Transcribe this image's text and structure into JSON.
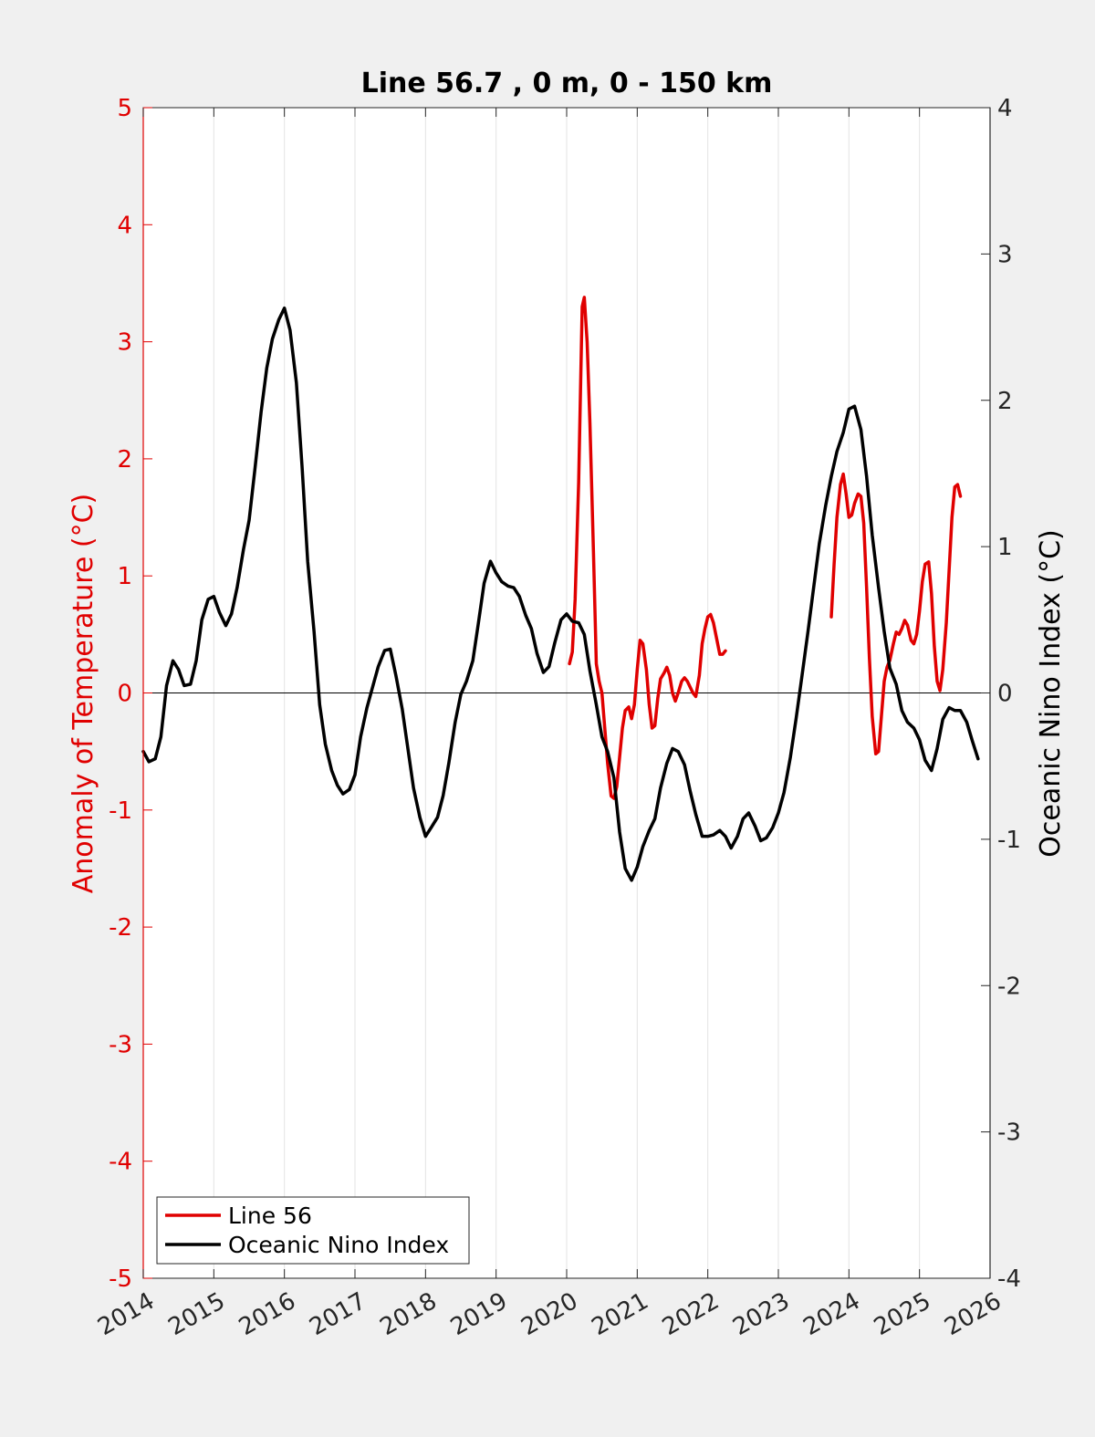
{
  "chart_data": {
    "type": "line",
    "title": "Line 56.7 , 0 m, 0 - 150 km",
    "xlabel": "",
    "ylabel_left": "Anomaly of Temperature (°C)",
    "ylabel_right": "Oceanic Nino Index (°C)",
    "xlim": [
      2014,
      2026
    ],
    "ylim_left": [
      -5,
      5
    ],
    "ylim_right": [
      -4,
      4
    ],
    "x_ticks": [
      "2014",
      "2015",
      "2016",
      "2017",
      "2018",
      "2019",
      "2020",
      "2021",
      "2022",
      "2023",
      "2024",
      "2025",
      "2026"
    ],
    "y_ticks_left": [
      "5",
      "4",
      "3",
      "2",
      "1",
      "0",
      "-1",
      "-2",
      "-3",
      "-4",
      "-5"
    ],
    "y_ticks_right": [
      "4",
      "3",
      "2",
      "1",
      "0",
      "-1",
      "-2",
      "-3",
      "-4"
    ],
    "grid": "vertical",
    "legend_position": "bottom-left",
    "colors": {
      "line56": "#e00000",
      "oni": "#000000",
      "left_axis": "#e00000",
      "right_axis": "#000000",
      "plot_bg": "#ffffff",
      "figure_bg": "#f0f0f0"
    },
    "series": [
      {
        "name": "Line 56",
        "axis": "left",
        "color": "#e00000",
        "segments": [
          [
            [
              2020.04,
              0.25
            ],
            [
              2020.08,
              0.35
            ],
            [
              2020.12,
              0.8
            ],
            [
              2020.17,
              1.8
            ],
            [
              2020.22,
              3.3
            ],
            [
              2020.25,
              3.38
            ],
            [
              2020.29,
              3.0
            ],
            [
              2020.33,
              2.3
            ],
            [
              2020.38,
              1.2
            ],
            [
              2020.42,
              0.25
            ],
            [
              2020.46,
              0.1
            ],
            [
              2020.5,
              0.0
            ],
            [
              2020.54,
              -0.3
            ],
            [
              2020.58,
              -0.6
            ],
            [
              2020.63,
              -0.88
            ],
            [
              2020.67,
              -0.9
            ],
            [
              2020.71,
              -0.8
            ],
            [
              2020.75,
              -0.55
            ],
            [
              2020.79,
              -0.3
            ],
            [
              2020.83,
              -0.15
            ],
            [
              2020.88,
              -0.12
            ],
            [
              2020.92,
              -0.22
            ],
            [
              2020.96,
              -0.1
            ],
            [
              2021.0,
              0.2
            ],
            [
              2021.04,
              0.45
            ],
            [
              2021.08,
              0.42
            ],
            [
              2021.13,
              0.2
            ],
            [
              2021.17,
              -0.1
            ],
            [
              2021.21,
              -0.3
            ],
            [
              2021.25,
              -0.28
            ],
            [
              2021.29,
              -0.05
            ],
            [
              2021.33,
              0.12
            ],
            [
              2021.38,
              0.17
            ],
            [
              2021.42,
              0.22
            ],
            [
              2021.46,
              0.15
            ],
            [
              2021.5,
              0.0
            ],
            [
              2021.54,
              -0.07
            ],
            [
              2021.58,
              0.0
            ],
            [
              2021.63,
              0.1
            ],
            [
              2021.67,
              0.13
            ],
            [
              2021.71,
              0.1
            ],
            [
              2021.75,
              0.05
            ],
            [
              2021.79,
              0.0
            ],
            [
              2021.83,
              -0.03
            ],
            [
              2021.88,
              0.15
            ],
            [
              2021.92,
              0.42
            ],
            [
              2021.96,
              0.55
            ],
            [
              2022.0,
              0.65
            ],
            [
              2022.04,
              0.67
            ],
            [
              2022.08,
              0.6
            ],
            [
              2022.13,
              0.45
            ],
            [
              2022.17,
              0.33
            ],
            [
              2022.21,
              0.33
            ],
            [
              2022.25,
              0.36
            ]
          ],
          [
            [
              2023.75,
              0.65
            ],
            [
              2023.79,
              1.1
            ],
            [
              2023.83,
              1.5
            ],
            [
              2023.88,
              1.78
            ],
            [
              2023.92,
              1.87
            ],
            [
              2023.96,
              1.7
            ],
            [
              2024.0,
              1.5
            ],
            [
              2024.04,
              1.52
            ],
            [
              2024.08,
              1.62
            ],
            [
              2024.13,
              1.7
            ],
            [
              2024.17,
              1.68
            ],
            [
              2024.21,
              1.45
            ],
            [
              2024.25,
              0.9
            ],
            [
              2024.29,
              0.3
            ],
            [
              2024.33,
              -0.2
            ],
            [
              2024.38,
              -0.52
            ],
            [
              2024.42,
              -0.5
            ],
            [
              2024.46,
              -0.2
            ],
            [
              2024.5,
              0.1
            ],
            [
              2024.54,
              0.22
            ],
            [
              2024.58,
              0.28
            ],
            [
              2024.63,
              0.42
            ],
            [
              2024.67,
              0.52
            ],
            [
              2024.71,
              0.5
            ],
            [
              2024.75,
              0.55
            ],
            [
              2024.79,
              0.62
            ],
            [
              2024.83,
              0.58
            ],
            [
              2024.88,
              0.45
            ],
            [
              2024.92,
              0.42
            ],
            [
              2024.96,
              0.5
            ],
            [
              2025.0,
              0.7
            ],
            [
              2025.04,
              0.95
            ],
            [
              2025.08,
              1.1
            ],
            [
              2025.13,
              1.12
            ],
            [
              2025.17,
              0.85
            ],
            [
              2025.21,
              0.4
            ],
            [
              2025.25,
              0.1
            ],
            [
              2025.29,
              0.02
            ],
            [
              2025.33,
              0.2
            ],
            [
              2025.38,
              0.6
            ],
            [
              2025.42,
              1.05
            ],
            [
              2025.46,
              1.5
            ],
            [
              2025.5,
              1.76
            ],
            [
              2025.54,
              1.78
            ],
            [
              2025.58,
              1.68
            ]
          ]
        ]
      },
      {
        "name": "Oceanic Nino Index",
        "axis": "right",
        "color": "#000000",
        "segments": [
          [
            [
              2014.0,
              -0.4
            ],
            [
              2014.08,
              -0.47
            ],
            [
              2014.17,
              -0.45
            ],
            [
              2014.25,
              -0.3
            ],
            [
              2014.33,
              0.05
            ],
            [
              2014.42,
              0.22
            ],
            [
              2014.5,
              0.16
            ],
            [
              2014.58,
              0.05
            ],
            [
              2014.67,
              0.06
            ],
            [
              2014.75,
              0.22
            ],
            [
              2014.83,
              0.5
            ],
            [
              2014.92,
              0.64
            ],
            [
              2015.0,
              0.66
            ],
            [
              2015.08,
              0.55
            ],
            [
              2015.17,
              0.46
            ],
            [
              2015.25,
              0.54
            ],
            [
              2015.33,
              0.72
            ],
            [
              2015.42,
              0.98
            ],
            [
              2015.5,
              1.18
            ],
            [
              2015.58,
              1.52
            ],
            [
              2015.67,
              1.92
            ],
            [
              2015.75,
              2.22
            ],
            [
              2015.83,
              2.42
            ],
            [
              2015.92,
              2.55
            ],
            [
              2016.0,
              2.63
            ],
            [
              2016.08,
              2.48
            ],
            [
              2016.17,
              2.12
            ],
            [
              2016.25,
              1.55
            ],
            [
              2016.33,
              0.9
            ],
            [
              2016.42,
              0.42
            ],
            [
              2016.5,
              -0.08
            ],
            [
              2016.58,
              -0.35
            ],
            [
              2016.67,
              -0.53
            ],
            [
              2016.75,
              -0.63
            ],
            [
              2016.83,
              -0.69
            ],
            [
              2016.92,
              -0.66
            ],
            [
              2017.0,
              -0.56
            ],
            [
              2017.08,
              -0.3
            ],
            [
              2017.17,
              -0.1
            ],
            [
              2017.25,
              0.04
            ],
            [
              2017.33,
              0.18
            ],
            [
              2017.42,
              0.29
            ],
            [
              2017.5,
              0.3
            ],
            [
              2017.58,
              0.12
            ],
            [
              2017.67,
              -0.11
            ],
            [
              2017.75,
              -0.38
            ],
            [
              2017.83,
              -0.65
            ],
            [
              2017.92,
              -0.85
            ],
            [
              2018.0,
              -0.98
            ],
            [
              2018.08,
              -0.92
            ],
            [
              2018.17,
              -0.85
            ],
            [
              2018.25,
              -0.7
            ],
            [
              2018.33,
              -0.48
            ],
            [
              2018.42,
              -0.2
            ],
            [
              2018.5,
              -0.01
            ],
            [
              2018.58,
              0.08
            ],
            [
              2018.67,
              0.22
            ],
            [
              2018.75,
              0.48
            ],
            [
              2018.83,
              0.75
            ],
            [
              2018.92,
              0.9
            ],
            [
              2019.0,
              0.82
            ],
            [
              2019.08,
              0.76
            ],
            [
              2019.17,
              0.73
            ],
            [
              2019.25,
              0.72
            ],
            [
              2019.33,
              0.66
            ],
            [
              2019.42,
              0.53
            ],
            [
              2019.5,
              0.44
            ],
            [
              2019.58,
              0.27
            ],
            [
              2019.67,
              0.14
            ],
            [
              2019.75,
              0.18
            ],
            [
              2019.83,
              0.34
            ],
            [
              2019.92,
              0.5
            ],
            [
              2020.0,
              0.54
            ],
            [
              2020.08,
              0.49
            ],
            [
              2020.17,
              0.48
            ],
            [
              2020.25,
              0.4
            ],
            [
              2020.33,
              0.15
            ],
            [
              2020.42,
              -0.08
            ],
            [
              2020.5,
              -0.3
            ],
            [
              2020.58,
              -0.4
            ],
            [
              2020.67,
              -0.58
            ],
            [
              2020.75,
              -0.95
            ],
            [
              2020.83,
              -1.2
            ],
            [
              2020.92,
              -1.28
            ],
            [
              2021.0,
              -1.19
            ],
            [
              2021.08,
              -1.05
            ],
            [
              2021.17,
              -0.94
            ],
            [
              2021.25,
              -0.86
            ],
            [
              2021.33,
              -0.65
            ],
            [
              2021.42,
              -0.48
            ],
            [
              2021.5,
              -0.38
            ],
            [
              2021.58,
              -0.4
            ],
            [
              2021.67,
              -0.49
            ],
            [
              2021.75,
              -0.67
            ],
            [
              2021.83,
              -0.83
            ],
            [
              2021.92,
              -0.98
            ],
            [
              2022.0,
              -0.98
            ],
            [
              2022.08,
              -0.97
            ],
            [
              2022.17,
              -0.94
            ],
            [
              2022.25,
              -0.98
            ],
            [
              2022.33,
              -1.06
            ],
            [
              2022.42,
              -0.98
            ],
            [
              2022.5,
              -0.86
            ],
            [
              2022.58,
              -0.82
            ],
            [
              2022.67,
              -0.91
            ],
            [
              2022.75,
              -1.01
            ],
            [
              2022.83,
              -0.99
            ],
            [
              2022.92,
              -0.92
            ],
            [
              2023.0,
              -0.82
            ],
            [
              2023.08,
              -0.68
            ],
            [
              2023.17,
              -0.44
            ],
            [
              2023.25,
              -0.18
            ],
            [
              2023.33,
              0.1
            ],
            [
              2023.42,
              0.42
            ],
            [
              2023.5,
              0.72
            ],
            [
              2023.58,
              1.02
            ],
            [
              2023.67,
              1.28
            ],
            [
              2023.75,
              1.48
            ],
            [
              2023.83,
              1.65
            ],
            [
              2023.92,
              1.78
            ],
            [
              2024.0,
              1.94
            ],
            [
              2024.08,
              1.96
            ],
            [
              2024.17,
              1.8
            ],
            [
              2024.25,
              1.48
            ],
            [
              2024.33,
              1.08
            ],
            [
              2024.42,
              0.72
            ],
            [
              2024.5,
              0.42
            ],
            [
              2024.58,
              0.17
            ],
            [
              2024.67,
              0.06
            ],
            [
              2024.75,
              -0.12
            ],
            [
              2024.83,
              -0.2
            ],
            [
              2024.92,
              -0.24
            ],
            [
              2025.0,
              -0.32
            ],
            [
              2025.08,
              -0.46
            ],
            [
              2025.17,
              -0.53
            ],
            [
              2025.25,
              -0.38
            ],
            [
              2025.33,
              -0.18
            ],
            [
              2025.42,
              -0.1
            ],
            [
              2025.5,
              -0.12
            ],
            [
              2025.58,
              -0.12
            ],
            [
              2025.67,
              -0.2
            ],
            [
              2025.75,
              -0.33
            ],
            [
              2025.83,
              -0.45
            ]
          ]
        ]
      }
    ]
  }
}
